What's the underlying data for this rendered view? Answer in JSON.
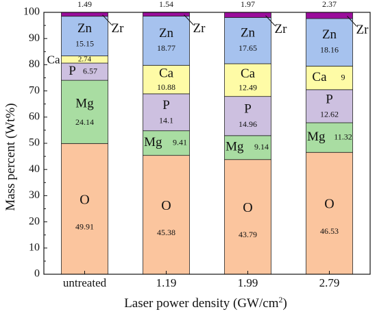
{
  "chart_data": {
    "type": "bar",
    "stacked": true,
    "xlabel": "Laser power density (GW/cm",
    "xlabel_sup": "2",
    "xlabel_close": ")",
    "ylabel": "Mass percent (Wt%)",
    "ylim": [
      0,
      100
    ],
    "yticks": [
      "0",
      "10",
      "20",
      "30",
      "40",
      "50",
      "60",
      "70",
      "80",
      "90",
      "100"
    ],
    "categories": [
      "untreated",
      "1.19",
      "1.99",
      "2.79"
    ],
    "series": [
      {
        "name": "O",
        "color": "#FBC59E",
        "values": [
          49.91,
          45.38,
          43.79,
          46.53
        ],
        "labels": [
          "49.91",
          "45.38",
          "43.79",
          "46.53"
        ]
      },
      {
        "name": "Mg",
        "color": "#A9DDA2",
        "values": [
          24.14,
          9.41,
          9.14,
          11.32
        ],
        "labels": [
          "24.14",
          "9.41",
          "9.14",
          "11.32"
        ]
      },
      {
        "name": "P",
        "color": "#CDC0E0",
        "values": [
          6.57,
          14.1,
          14.96,
          12.62
        ],
        "labels": [
          "6.57",
          "14.1",
          "14.96",
          "12.62"
        ]
      },
      {
        "name": "Ca",
        "color": "#FEFBA6",
        "values": [
          2.74,
          10.88,
          12.49,
          9
        ],
        "labels": [
          "2.74",
          "10.88",
          "12.49",
          "9"
        ]
      },
      {
        "name": "Zn",
        "color": "#A6C2EE",
        "values": [
          15.15,
          18.77,
          17.65,
          18.16
        ],
        "labels": [
          "15.15",
          "18.77",
          "17.65",
          "18.16"
        ]
      },
      {
        "name": "Zr",
        "color": "#9A0D9B",
        "values": [
          1.49,
          1.54,
          1.97,
          2.37
        ],
        "labels": [
          "1.49",
          "1.54",
          "1.97",
          "2.37"
        ]
      }
    ],
    "grid": false,
    "legend": "none"
  }
}
